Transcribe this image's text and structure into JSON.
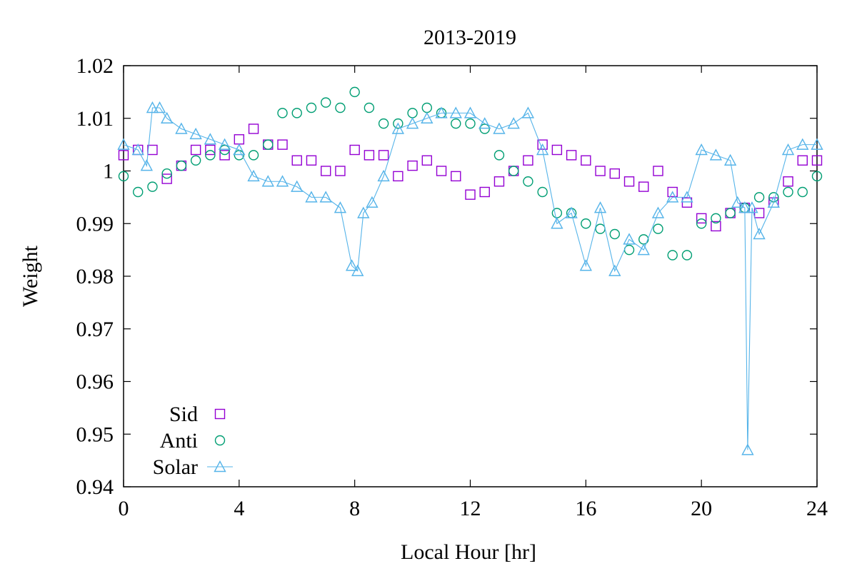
{
  "chart_data": {
    "type": "scatter",
    "title": "2013-2019",
    "xlabel": "Local Hour [hr]",
    "ylabel": "Weight",
    "xlim": [
      0,
      24
    ],
    "ylim": [
      0.94,
      1.02
    ],
    "xticks": [
      0,
      4,
      8,
      12,
      16,
      20,
      24
    ],
    "yticks": [
      0.94,
      0.95,
      0.96,
      0.97,
      0.98,
      0.99,
      1,
      1.01,
      1.02
    ],
    "xtick_labels": [
      "0",
      "4",
      "8",
      "12",
      "16",
      "20",
      "24"
    ],
    "ytick_labels": [
      "0.94",
      "0.95",
      "0.96",
      "0.97",
      "0.98",
      "0.99",
      "1",
      "1.01",
      "1.02"
    ],
    "grid": false,
    "legend_position": "bottom-left",
    "series": [
      {
        "name": "Sid",
        "marker": "square",
        "color": "#9400d3",
        "line": false,
        "x": [
          0,
          0.5,
          1,
          1.5,
          2,
          2.5,
          3,
          3.5,
          4,
          4.5,
          5,
          5.5,
          6,
          6.5,
          7,
          7.5,
          8,
          8.5,
          9,
          9.5,
          10,
          10.5,
          11,
          11.5,
          12,
          12.5,
          13,
          13.5,
          14,
          14.5,
          15,
          15.5,
          16,
          16.5,
          17,
          17.5,
          18,
          18.5,
          19,
          19.5,
          20,
          20.5,
          21,
          21.5,
          22,
          22.5,
          23,
          23.5,
          24
        ],
        "y": [
          1.003,
          1.004,
          1.004,
          0.9985,
          1.001,
          1.004,
          1.004,
          1.003,
          1.006,
          1.008,
          1.005,
          1.005,
          1.002,
          1.002,
          1.0,
          1.0,
          1.004,
          1.003,
          1.003,
          0.999,
          1.001,
          1.002,
          1.0,
          0.999,
          0.9955,
          0.996,
          0.998,
          1.0,
          1.002,
          1.005,
          1.004,
          1.003,
          1.002,
          1.0,
          0.9995,
          0.998,
          0.997,
          1.0,
          0.996,
          0.994,
          0.991,
          0.9895,
          0.992,
          0.993,
          0.992,
          0.994,
          0.998,
          1.002,
          1.002
        ]
      },
      {
        "name": "Anti",
        "marker": "circle",
        "color": "#009e73",
        "line": false,
        "x": [
          0,
          0.5,
          1,
          1.5,
          2,
          2.5,
          3,
          3.5,
          4,
          4.5,
          5,
          5.5,
          6,
          6.5,
          7,
          7.5,
          8,
          8.5,
          9,
          9.5,
          10,
          10.5,
          11,
          11.5,
          12,
          12.5,
          13,
          13.5,
          14,
          14.5,
          15,
          15.5,
          16,
          16.5,
          17,
          17.5,
          18,
          18.5,
          19,
          19.5,
          20,
          20.5,
          21,
          21.5,
          22,
          22.5,
          23,
          23.5,
          24
        ],
        "y": [
          0.999,
          0.996,
          0.997,
          0.9995,
          1.001,
          1.002,
          1.003,
          1.004,
          1.003,
          1.003,
          1.005,
          1.011,
          1.011,
          1.012,
          1.013,
          1.012,
          1.015,
          1.012,
          1.009,
          1.009,
          1.011,
          1.012,
          1.011,
          1.009,
          1.009,
          1.008,
          1.003,
          1.0,
          0.998,
          0.996,
          0.992,
          0.992,
          0.99,
          0.989,
          0.988,
          0.985,
          0.987,
          0.989,
          0.984,
          0.984,
          0.99,
          0.991,
          0.992,
          0.993,
          0.995,
          0.995,
          0.996,
          0.996,
          0.999
        ]
      },
      {
        "name": "Solar",
        "marker": "triangle",
        "color": "#56b4e9",
        "line": true,
        "x": [
          0,
          0.5,
          0.8,
          1,
          1.25,
          1.5,
          2,
          2.5,
          3,
          3.5,
          4,
          4.5,
          5,
          5.5,
          6,
          6.5,
          7,
          7.5,
          7.9,
          8.1,
          8.3,
          8.6,
          9,
          9.5,
          10,
          10.5,
          11,
          11.5,
          12,
          12.5,
          13,
          13.5,
          14,
          14.5,
          15,
          15.5,
          16,
          16.5,
          17,
          17.5,
          18,
          18.5,
          19,
          19.5,
          20,
          20.5,
          21,
          21.25,
          21.5,
          21.6,
          21.75,
          22,
          22.5,
          23,
          23.5,
          24
        ],
        "y": [
          1.005,
          1.004,
          1.001,
          1.012,
          1.012,
          1.01,
          1.008,
          1.007,
          1.006,
          1.005,
          1.004,
          0.999,
          0.998,
          0.998,
          0.997,
          0.995,
          0.995,
          0.993,
          0.982,
          0.981,
          0.992,
          0.994,
          0.999,
          1.008,
          1.009,
          1.01,
          1.011,
          1.011,
          1.011,
          1.009,
          1.008,
          1.009,
          1.011,
          1.004,
          0.99,
          0.992,
          0.982,
          0.993,
          0.981,
          0.987,
          0.985,
          0.992,
          0.995,
          0.995,
          1.004,
          1.003,
          1.002,
          0.994,
          0.993,
          0.947,
          0.993,
          0.988,
          0.994,
          1.004,
          1.005,
          1.005
        ]
      }
    ]
  }
}
